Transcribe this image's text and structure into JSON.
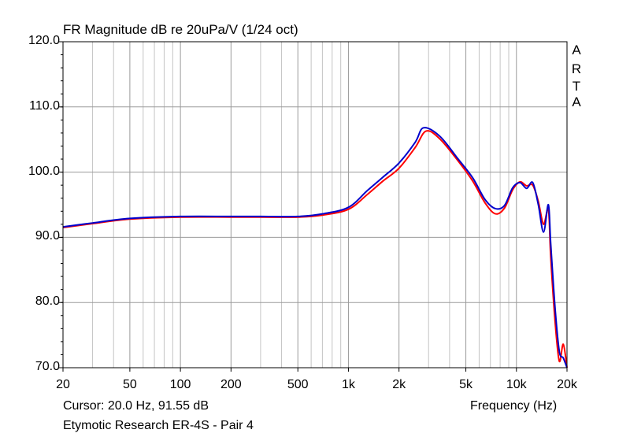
{
  "chart_data": {
    "type": "line",
    "title": "FR Magnitude dB re 20uPa/V (1/24 oct)",
    "xlabel": "Frequency (Hz)",
    "ylabel": "",
    "xscale": "log",
    "xlim": [
      20,
      20000
    ],
    "ylim": [
      70,
      120
    ],
    "x_ticks": [
      20,
      50,
      100,
      200,
      500,
      1000,
      2000,
      5000,
      10000,
      20000
    ],
    "x_tick_labels": [
      "20",
      "50",
      "100",
      "200",
      "500",
      "1k",
      "2k",
      "5k",
      "10k",
      "20k"
    ],
    "y_ticks": [
      70,
      80,
      90,
      100,
      110,
      120
    ],
    "y_tick_labels": [
      "70.0",
      "80.0",
      "90.0",
      "100.0",
      "110.0",
      "120.0"
    ],
    "grid": true,
    "series": [
      {
        "color": "#ff0000",
        "x": [
          20,
          30,
          50,
          100,
          200,
          300,
          500,
          700,
          1000,
          1300,
          1600,
          2000,
          2500,
          2900,
          3500,
          4500,
          5500,
          6500,
          7500,
          8500,
          9500,
          10500,
          11500,
          12500,
          13500,
          14500,
          15500,
          16000,
          17000,
          18000,
          19000,
          20000
        ],
        "y": [
          91.5,
          92.1,
          92.8,
          93.1,
          93.1,
          93.1,
          93.1,
          93.4,
          94.3,
          96.6,
          98.6,
          100.6,
          103.8,
          106.3,
          105.1,
          101.7,
          98.6,
          95.3,
          93.6,
          94.5,
          97.3,
          98.5,
          97.9,
          98.0,
          95.5,
          92.0,
          94.3,
          87.0,
          77.0,
          71.0,
          73.6,
          70.0
        ]
      },
      {
        "color": "#0000cc",
        "x": [
          20,
          30,
          50,
          100,
          200,
          300,
          500,
          700,
          1000,
          1300,
          1600,
          2000,
          2500,
          2800,
          3500,
          4500,
          5500,
          6500,
          7500,
          8500,
          9500,
          10500,
          11500,
          12500,
          13500,
          14500,
          15500,
          16000,
          17000,
          18000,
          19000,
          20000
        ],
        "y": [
          91.6,
          92.2,
          92.9,
          93.2,
          93.2,
          93.2,
          93.2,
          93.6,
          94.6,
          97.2,
          99.2,
          101.4,
          104.6,
          106.8,
          105.5,
          102.0,
          99.1,
          95.8,
          94.4,
          94.9,
          97.6,
          98.4,
          97.5,
          98.4,
          95.0,
          90.8,
          95.0,
          89.0,
          79.0,
          72.5,
          71.5,
          70.0
        ]
      }
    ],
    "annotations": {
      "cursor": "Cursor: 20.0 Hz, 91.55 dB",
      "caption": "Etymotic Research ER-4S - Pair 4",
      "brand": [
        "A",
        "R",
        "T",
        "A"
      ]
    }
  }
}
